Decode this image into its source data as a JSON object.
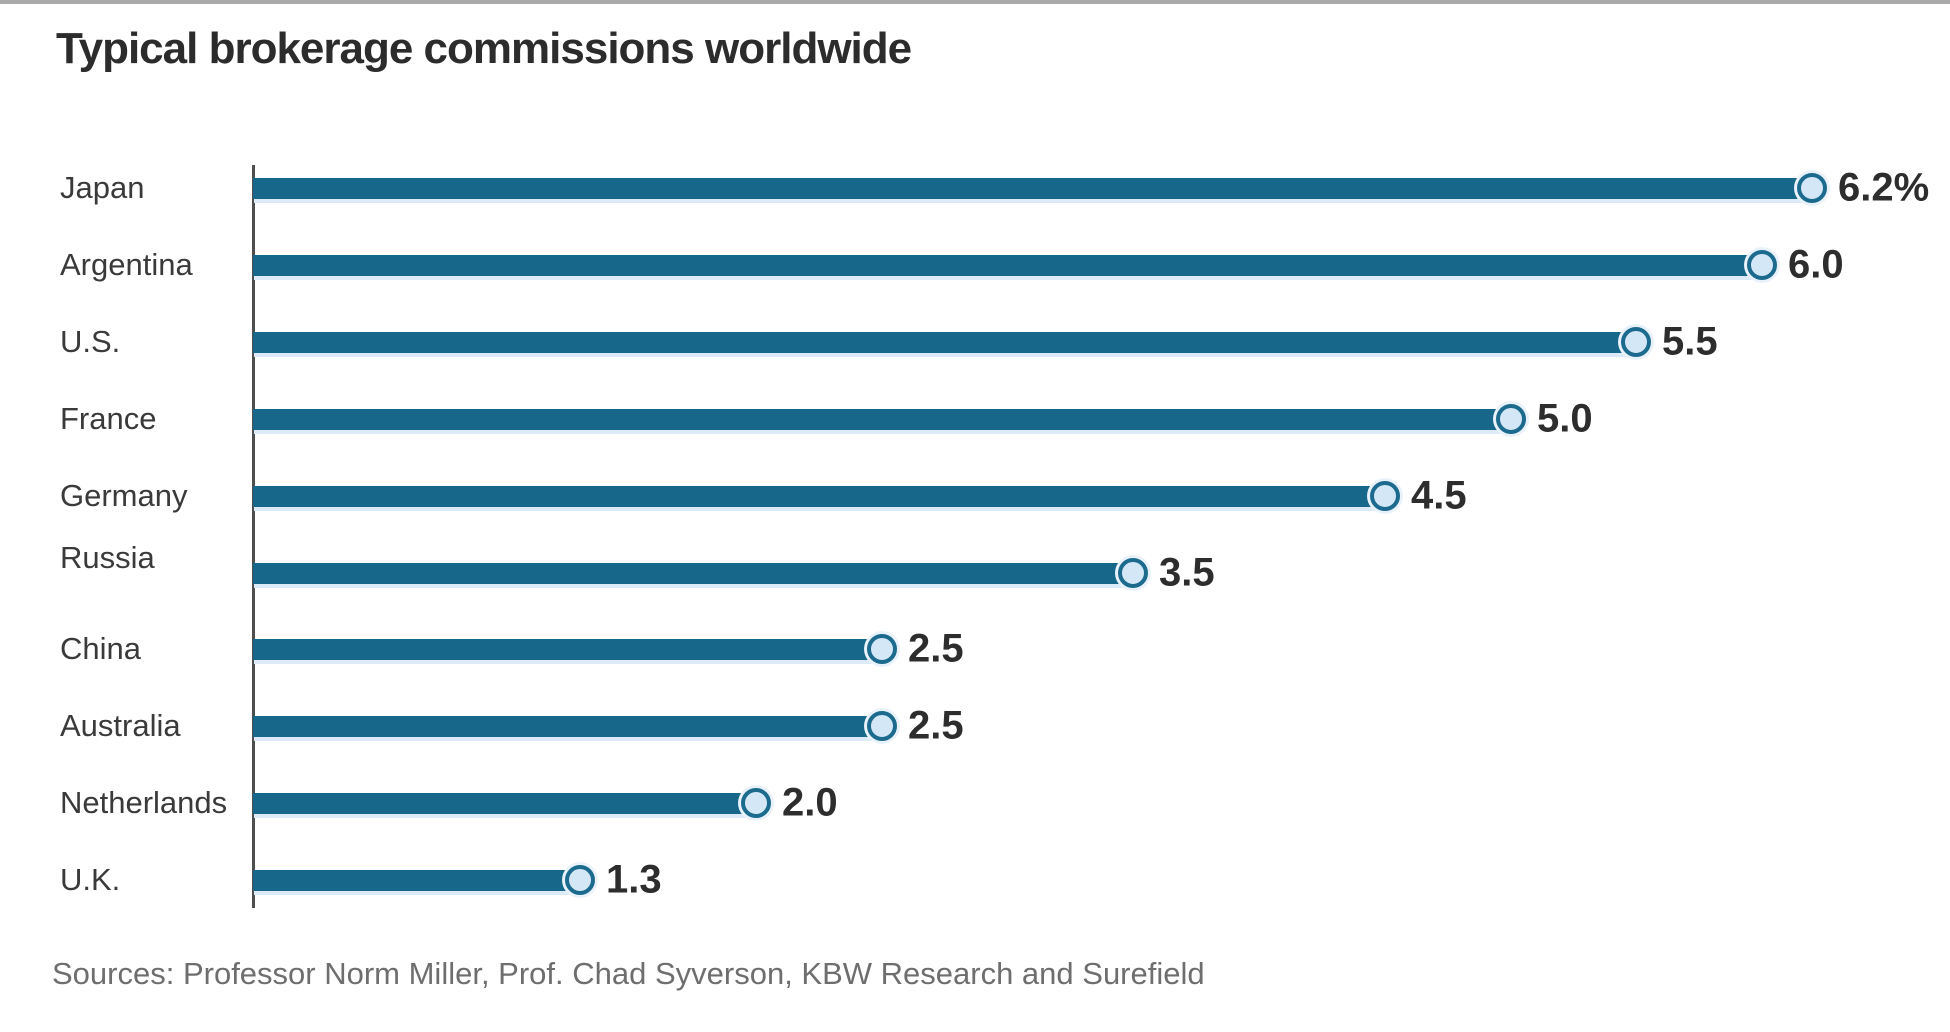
{
  "window": {
    "top_edge_color": "#a9a9a9"
  },
  "chart": {
    "source_note": "Sources: Professor Norm Miller, Prof. Chad Syverson, KBW Research and Surefield",
    "bar_color": "#16678a",
    "marker_fill": "#d3e7f6",
    "marker_ring_color": "#1c6b8e",
    "axis_color": "#4f4f4f",
    "title_color": "#2c2c2c",
    "label_color": "#3a3a3a",
    "value_color": "#2d2d2d",
    "source_color": "#6e6e6e"
  },
  "chart_data": {
    "type": "bar",
    "style": "lollipop",
    "orientation": "horizontal",
    "title": "Typical brokerage commissions worldwide",
    "categories": [
      "Japan",
      "Argentina",
      "U.S.",
      "France",
      "Germany",
      "Russia",
      "China",
      "Australia",
      "Netherlands",
      "U.K."
    ],
    "values": [
      6.2,
      6.0,
      5.5,
      5.0,
      4.5,
      3.5,
      2.5,
      2.5,
      2.0,
      1.3
    ],
    "value_labels": [
      "6.2%",
      "6.0",
      "5.5",
      "5.0",
      "4.5",
      "3.5",
      "2.5",
      "2.5",
      "2.0",
      "1.3"
    ],
    "unit": "percent",
    "xlabel": "",
    "ylabel": "",
    "xlim": [
      0,
      6.75
    ],
    "grid": false,
    "legend": false,
    "source": "Sources: Professor Norm Miller, Prof. Chad Syverson, KBW Research and Surefield"
  }
}
